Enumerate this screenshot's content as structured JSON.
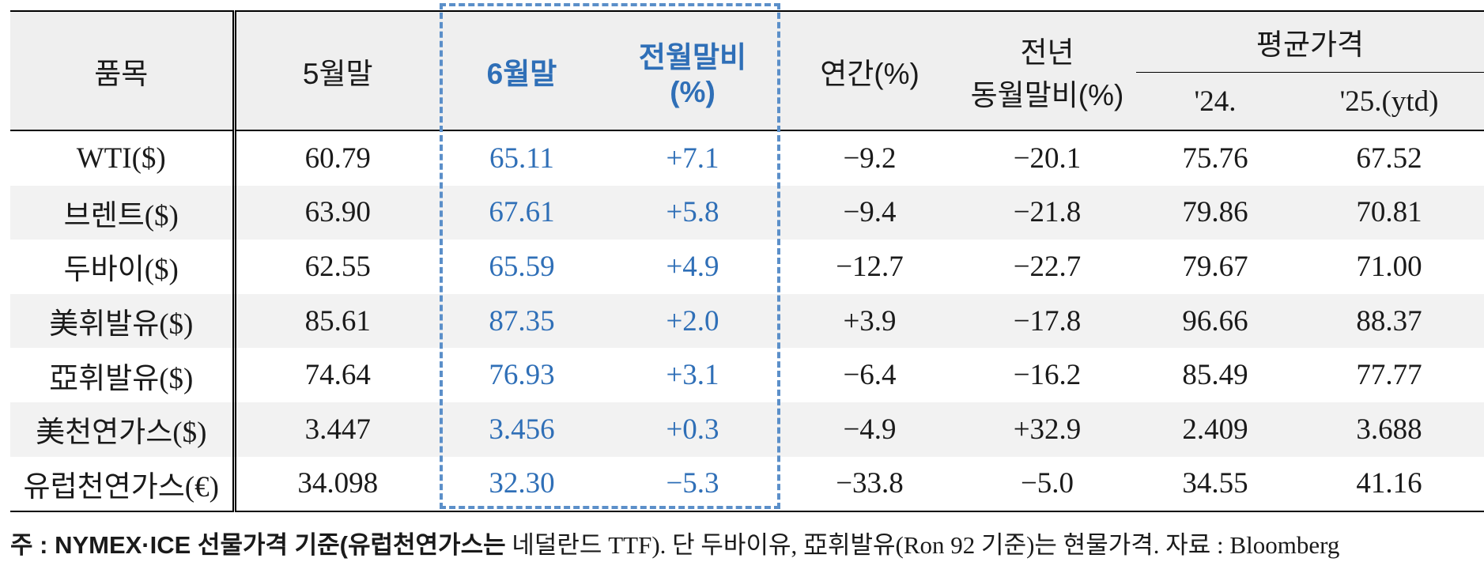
{
  "header": {
    "item": "품목",
    "may_end": "5월말",
    "jun_end": "6월말",
    "mom_line1": "전월말비",
    "mom_line2": "(%)",
    "annual": "연간(%)",
    "yoy_line1": "전년",
    "yoy_line2": "동월말비(%)",
    "avg_price": "평균가격",
    "y24": "'24.",
    "y25": "'25.(ytd)"
  },
  "rows": [
    {
      "item": "WTI($)",
      "may": "60.79",
      "jun": "65.11",
      "mom": "+7.1",
      "annual": "−9.2",
      "yoy": "−20.1",
      "y24": "75.76",
      "y25": "67.52"
    },
    {
      "item": "브렌트($)",
      "may": "63.90",
      "jun": "67.61",
      "mom": "+5.8",
      "annual": "−9.4",
      "yoy": "−21.8",
      "y24": "79.86",
      "y25": "70.81"
    },
    {
      "item": "두바이($)",
      "may": "62.55",
      "jun": "65.59",
      "mom": "+4.9",
      "annual": "−12.7",
      "yoy": "−22.7",
      "y24": "79.67",
      "y25": "71.00"
    },
    {
      "item": "美휘발유($)",
      "may": "85.61",
      "jun": "87.35",
      "mom": "+2.0",
      "annual": "+3.9",
      "yoy": "−17.8",
      "y24": "96.66",
      "y25": "88.37"
    },
    {
      "item": "亞휘발유($)",
      "may": "74.64",
      "jun": "76.93",
      "mom": "+3.1",
      "annual": "−6.4",
      "yoy": "−16.2",
      "y24": "85.49",
      "y25": "77.77"
    },
    {
      "item": "美천연가스($)",
      "may": "3.447",
      "jun": "3.456",
      "mom": "+0.3",
      "annual": "−4.9",
      "yoy": "+32.9",
      "y24": "2.409",
      "y25": "3.688"
    },
    {
      "item": "유럽천연가스(€)",
      "may": "34.098",
      "jun": "32.30",
      "mom": "−5.3",
      "annual": "−33.8",
      "yoy": "−5.0",
      "y24": "34.55",
      "y25": "41.16"
    }
  ],
  "note": {
    "prefix": "주 : NYMEX·ICE 선물가격 기준(유럽천연가스는",
    "rest": " 네덜란드 TTF). 단 두바이유, 亞휘발유(Ron 92 기준)는 현물가격. 자료 : Bloomberg"
  },
  "colors": {
    "highlight": "#2f6fb7",
    "dash_border": "#5b8fc9",
    "header_bg": "#efefef",
    "stripe_bg": "#f2f2f2"
  }
}
